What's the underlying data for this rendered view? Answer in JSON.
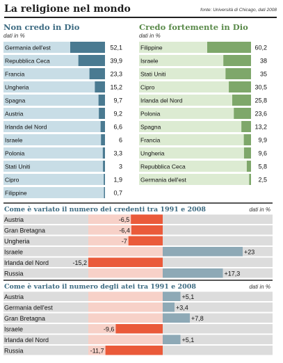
{
  "header": {
    "title": "La religione nel mondo",
    "source": "fonte: Università di Chicago, dati 2008"
  },
  "colors": {
    "title": "#1f1f1f",
    "left_heading": "#3d6b82",
    "right_heading": "#5a8a4a",
    "left_label_bg": "#c8dde6",
    "left_bar": "#4a7a91",
    "right_label_bg": "#dcebd2",
    "right_bar": "#7ea76a",
    "section_heading": "#3d6b82",
    "row_bg": "#dcdcdc",
    "neg_bg": "#f7d1c8",
    "neg_bar": "#ea5a3a",
    "pos_bar_believers": "#8ea9b6",
    "pos_bar_atheists": "#8ea9b6"
  },
  "chart_data": [
    {
      "type": "bar",
      "title": "Non credo in Dio",
      "subtitle": "dati in %",
      "categories": [
        "Germania dell'est",
        "Repubblica Ceca",
        "Francia",
        "Ungheria",
        "Spagna",
        "Austria",
        "Irlanda del Nord",
        "Israele",
        "Polonia",
        "Stati Uniti",
        "Cipro",
        "Filippine"
      ],
      "values": [
        52.1,
        39.9,
        23.3,
        15.2,
        9.7,
        9.2,
        6.6,
        6,
        3.3,
        3,
        1.9,
        0.7
      ],
      "value_labels": [
        "52,1",
        "39,9",
        "23,3",
        "15,2",
        "9,7",
        "9,2",
        "6,6",
        "6",
        "3,3",
        "3",
        "1,9",
        "0,7"
      ],
      "xlim": [
        0,
        52.1
      ]
    },
    {
      "type": "bar",
      "title": "Credo fortemente in Dio",
      "subtitle": "dati in %",
      "categories": [
        "Filippine",
        "Israele",
        "Stati Uniti",
        "Cipro",
        "Irlanda del Nord",
        "Polonia",
        "Spagna",
        "Francia",
        "Ungheria",
        "Repubblica Ceca",
        "Germania dell'est"
      ],
      "values": [
        60.2,
        38,
        35,
        30.5,
        25.8,
        23.6,
        13.2,
        9.9,
        9.6,
        5.8,
        2.5
      ],
      "value_labels": [
        "60,2",
        "38",
        "35",
        "30,5",
        "25,8",
        "23,6",
        "13,2",
        "9,9",
        "9,6",
        "5,8",
        "2,5"
      ],
      "xlim": [
        0,
        60.2
      ]
    },
    {
      "type": "bar",
      "title": "Come è variato il numero dei credenti tra 1991 e 2008",
      "subtitle": "dati in %",
      "categories": [
        "Austria",
        "Gran Bretagna",
        "Ungheria",
        "Israele",
        "Irlanda del Nord",
        "Russia"
      ],
      "values": [
        -6.5,
        -6.4,
        -7,
        23,
        -15.2,
        17.3
      ],
      "value_labels": [
        "-6,5",
        "-6,4",
        "-7",
        "+23",
        "-15,2",
        "+17,3"
      ],
      "xlim": [
        -15.2,
        23
      ]
    },
    {
      "type": "bar",
      "title": "Come è variato il numero degli atei tra 1991 e 2008",
      "subtitle": "dati in %",
      "categories": [
        "Austria",
        "Germania dell'est",
        "Gran Bretagna",
        "Israele",
        "Irlanda del Nord",
        "Russia"
      ],
      "values": [
        5.1,
        3.4,
        7.8,
        -9.6,
        5.1,
        -11.7
      ],
      "value_labels": [
        "+5,1",
        "+3,4",
        "+7,8",
        "-9,6",
        "+5,1",
        "-11,7"
      ],
      "xlim": [
        -15.2,
        23
      ]
    }
  ]
}
